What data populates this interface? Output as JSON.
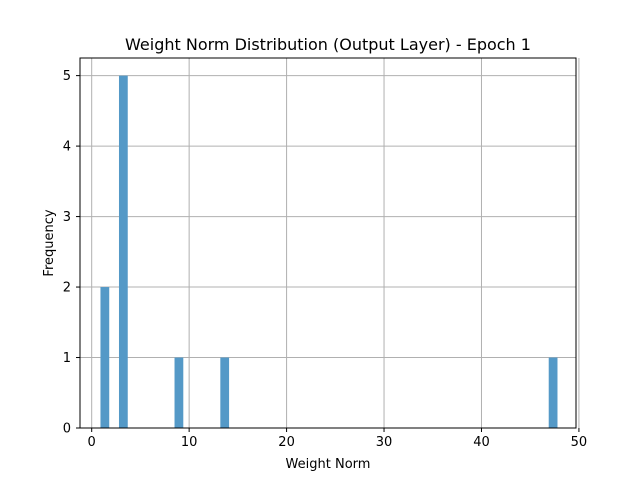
{
  "colors": {
    "bar": "#5499c7",
    "grid": "#b0b0b0"
  },
  "chart_data": {
    "type": "bar",
    "title": "Weight Norm Distribution (Output Layer) - Epoch 1",
    "xlabel": "Weight Norm",
    "ylabel": "Frequency",
    "xlim": [
      -1.2,
      49.7
    ],
    "ylim": [
      0,
      5.25
    ],
    "xticks": [
      0,
      10,
      20,
      30,
      40,
      50
    ],
    "yticks": [
      0,
      1,
      2,
      3,
      4,
      5
    ],
    "grid": true,
    "bins": [
      {
        "x0": 0.9,
        "x1": 1.8,
        "value": 2
      },
      {
        "x0": 2.8,
        "x1": 3.7,
        "value": 5
      },
      {
        "x0": 8.5,
        "x1": 9.4,
        "value": 1
      },
      {
        "x0": 13.2,
        "x1": 14.1,
        "value": 1
      },
      {
        "x0": 46.9,
        "x1": 47.8,
        "value": 1
      }
    ]
  }
}
